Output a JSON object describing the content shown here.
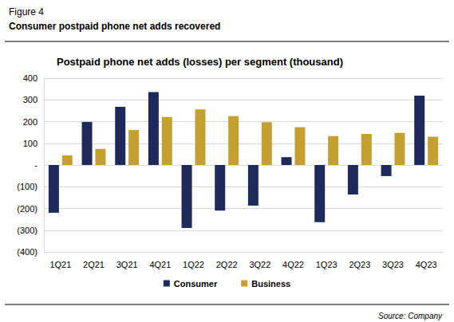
{
  "chart_data": {
    "type": "bar",
    "title": "Postpaid phone net adds (losses) per segment (thousand)",
    "subtitle": "Consumer postpaid phone net adds recovered",
    "annotations": [
      "Figure 4",
      "Source: Company"
    ],
    "categories": [
      "1Q21",
      "2Q21",
      "3Q21",
      "4Q21",
      "1Q22",
      "2Q22",
      "3Q22",
      "4Q22",
      "1Q23",
      "2Q23",
      "3Q23",
      "4Q23"
    ],
    "series": [
      {
        "name": "Consumer",
        "color": "#1f2a5c",
        "values": [
          -220,
          198,
          268,
          336,
          -290,
          -210,
          -187,
          36,
          -263,
          -136,
          -51,
          319
        ]
      },
      {
        "name": "Business",
        "color": "#c4a032",
        "values": [
          44,
          74,
          161,
          221,
          256,
          225,
          197,
          174,
          133,
          143,
          148,
          130
        ]
      }
    ],
    "ylim": [
      -400,
      400
    ],
    "yticks": [
      {
        "value": -400,
        "label": "(400)"
      },
      {
        "value": -300,
        "label": "(300)"
      },
      {
        "value": -200,
        "label": "(200)"
      },
      {
        "value": -100,
        "label": "(100)"
      },
      {
        "value": 0,
        "label": "-"
      },
      100,
      200,
      300,
      400
    ],
    "grid": true,
    "legend": "bottom"
  }
}
